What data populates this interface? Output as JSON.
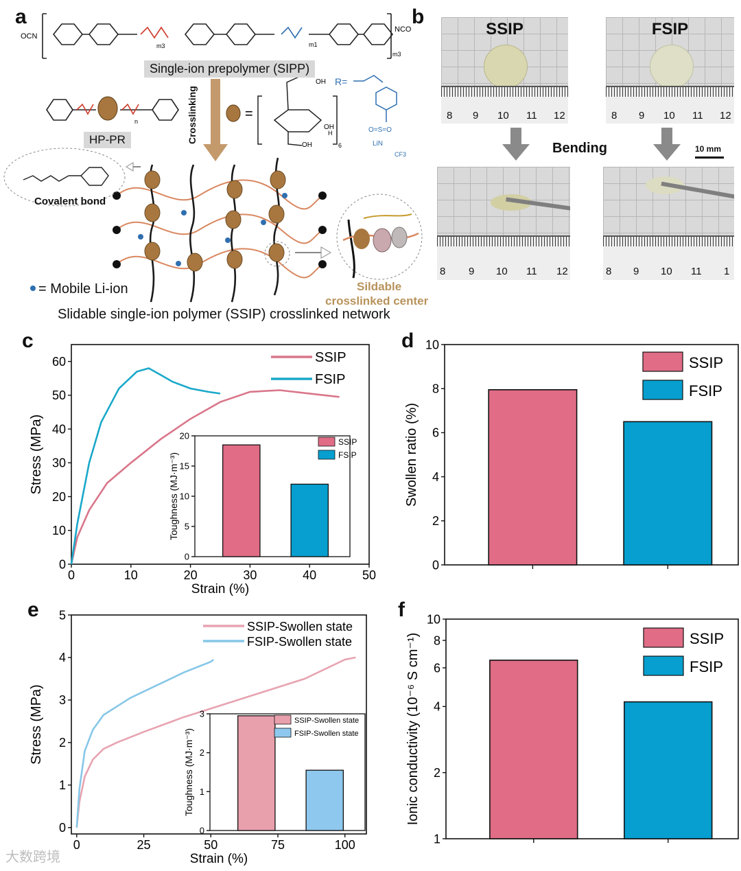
{
  "panels": {
    "a": "a",
    "b": "b",
    "c": "c",
    "d": "d",
    "e": "e",
    "f": "f"
  },
  "panel_a": {
    "prepolymer_label": "Single-ion prepolymer (SIPP)",
    "hppr_label": "HP-PR",
    "crosslinking": "Crosslinking",
    "covalent_bond": "Covalent bond",
    "mobile_li": "= Mobile Li-ion",
    "slidable_center_line1": "Sildable",
    "slidable_center_line2": "crosslinked center",
    "network_caption": "Slidable single-ion polymer (SSIP) crosslinked network",
    "chem_labels": {
      "ocn": "OCN",
      "nco": "NCO",
      "r_eq": "R=",
      "m3": "m3",
      "m1": "m1",
      "n": "n",
      "oh": "OH",
      "h": "H",
      "so2": "O=S=O",
      "lin": "LiN",
      "cf3": "CF3",
      "eq": "=",
      "sub6": "6"
    }
  },
  "panel_b": {
    "ssip": "SSIP",
    "fsip": "FSIP",
    "bending": "Bending",
    "scale": "10 mm",
    "ruler_top": [
      "8",
      "9",
      "10",
      "11",
      "12"
    ],
    "ruler_bottom_left": [
      "8",
      "9",
      "10",
      "11",
      "12"
    ],
    "ruler_bottom_right": [
      "8",
      "9",
      "10",
      "11",
      "1"
    ]
  },
  "colors": {
    "ssip": "#e06c86",
    "fsip": "#069fcf",
    "ssip_swollen": "#e9a0ad",
    "fsip_swollen": "#8ec8ee",
    "curve_ssip": "#d9768a",
    "curve_fsip": "#1aa8c9",
    "curve_ssip_sw": "#e7a3b1",
    "curve_fsip_sw": "#87c7e8"
  },
  "chart_data": [
    {
      "id": "c",
      "type": "line",
      "xlabel": "Strain (%)",
      "ylabel": "Stress (MPa)",
      "xlim": [
        0,
        50
      ],
      "ylim": [
        0,
        65
      ],
      "xticks": [
        0,
        10,
        20,
        30,
        40,
        50
      ],
      "yticks": [
        0,
        10,
        20,
        30,
        40,
        50,
        60
      ],
      "series": [
        {
          "name": "SSIP",
          "x": [
            0,
            1,
            3,
            6,
            10,
            15,
            20,
            25,
            30,
            35,
            40,
            45
          ],
          "y": [
            0,
            8,
            16,
            24,
            30,
            37,
            43,
            48,
            51,
            51.5,
            50.5,
            49.5
          ]
        },
        {
          "name": "FSIP",
          "x": [
            0,
            1,
            3,
            5,
            8,
            11,
            13,
            15,
            17,
            20,
            23,
            25
          ],
          "y": [
            0,
            12,
            30,
            42,
            52,
            57,
            58,
            56,
            54,
            52,
            51,
            50.5
          ]
        }
      ],
      "inset": {
        "type": "bar",
        "ylabel": "Toughness (MJ·m⁻³)",
        "ylim": [
          0,
          20
        ],
        "yticks": [
          0,
          5,
          10,
          15,
          20
        ],
        "categories": [
          "SSIP",
          "FSIP"
        ],
        "values": [
          18.5,
          12
        ]
      }
    },
    {
      "id": "d",
      "type": "bar",
      "ylabel": "Swollen ratio (%)",
      "ylim": [
        0,
        10
      ],
      "yticks": [
        0,
        2,
        4,
        6,
        8,
        10
      ],
      "categories": [
        "SSIP",
        "FSIP"
      ],
      "values": [
        7.95,
        6.5
      ]
    },
    {
      "id": "e",
      "type": "line",
      "xlabel": "Strain (%)",
      "ylabel": "Stress (MPa)",
      "xlim": [
        -2,
        108
      ],
      "ylim": [
        -0.15,
        5
      ],
      "xticks": [
        0,
        25,
        50,
        75,
        100
      ],
      "yticks": [
        0,
        1,
        2,
        3,
        4,
        5
      ],
      "series": [
        {
          "name": "SSIP-Swollen state",
          "x": [
            0,
            1,
            3,
            6,
            10,
            15,
            25,
            40,
            55,
            70,
            85,
            100,
            104
          ],
          "y": [
            0,
            0.6,
            1.2,
            1.6,
            1.85,
            2.0,
            2.25,
            2.6,
            2.9,
            3.2,
            3.5,
            3.95,
            4.0
          ]
        },
        {
          "name": "FSIP-Swollen state",
          "x": [
            0,
            1,
            3,
            6,
            10,
            15,
            20,
            30,
            40,
            50,
            51
          ],
          "y": [
            0,
            0.9,
            1.8,
            2.3,
            2.65,
            2.85,
            3.05,
            3.35,
            3.65,
            3.9,
            3.95
          ]
        }
      ],
      "inset": {
        "type": "bar",
        "ylabel": "Toughness (MJ·m⁻³)",
        "ylim": [
          0,
          3
        ],
        "yticks": [
          0,
          1,
          2,
          3
        ],
        "categories": [
          "SSIP-Swollen state",
          "FSIP-Swollen state"
        ],
        "values": [
          2.95,
          1.55
        ]
      }
    },
    {
      "id": "f",
      "type": "bar",
      "ylabel": "Ionic conductivity (10⁻⁶ S cm⁻¹)",
      "yscale": "log",
      "ylim": [
        1,
        10
      ],
      "yticks": [
        1,
        2,
        4,
        6,
        8,
        10
      ],
      "categories": [
        "SSIP",
        "FSIP"
      ],
      "values": [
        6.5,
        4.2
      ]
    }
  ],
  "watermark": "大数跨境"
}
